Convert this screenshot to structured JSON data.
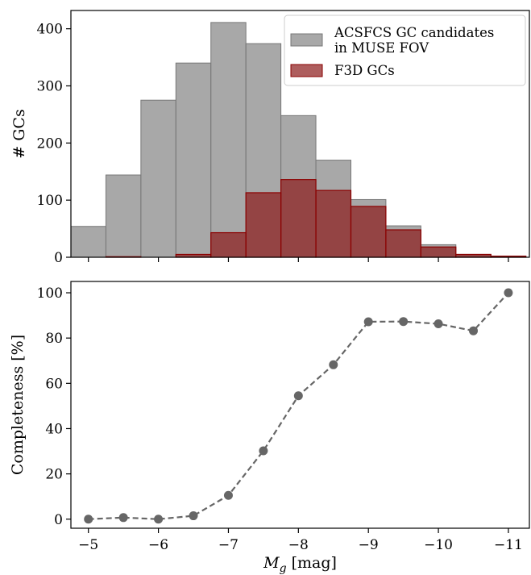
{
  "chart_data": [
    {
      "type": "bar",
      "panel": "top",
      "ylabel": "# GCs",
      "ylim": [
        0,
        432
      ],
      "xlim": [
        -4.75,
        -11.3
      ],
      "yticks": [
        0,
        100,
        200,
        300,
        400
      ],
      "bin_edges": [
        -4.75,
        -5.25,
        -5.75,
        -6.25,
        -6.75,
        -7.25,
        -7.75,
        -8.25,
        -8.75,
        -9.25,
        -9.75,
        -10.25,
        -10.75,
        -11.25
      ],
      "series": [
        {
          "name": "ACSFCS GC candidates in MUSE FOV",
          "name_lines": [
            "ACSFCS GC candidates",
            "in MUSE FOV"
          ],
          "color": "#999999",
          "values": [
            54,
            144,
            275,
            340,
            411,
            374,
            248,
            170,
            101,
            55,
            22,
            5,
            2
          ]
        },
        {
          "name": "F3D GCs",
          "color": "#8b1a1a",
          "values": [
            0,
            1,
            0,
            5,
            43,
            113,
            136,
            117,
            89,
            48,
            18,
            5,
            2
          ]
        }
      ],
      "legend": "top-right"
    },
    {
      "type": "line",
      "panel": "bottom",
      "xlabel": "M_g [mag]",
      "xlabel_main": "M",
      "xlabel_sub": "g",
      "xlabel_unit": " [mag]",
      "ylabel": "Completeness [%]",
      "ylim": [
        -4,
        105
      ],
      "xlim": [
        -4.75,
        -11.3
      ],
      "xticks": [
        -5,
        -6,
        -7,
        -8,
        -9,
        -10,
        -11
      ],
      "xtick_labels": [
        "−5",
        "−6",
        "−7",
        "−8",
        "−9",
        "−10",
        "−11"
      ],
      "yticks": [
        0,
        20,
        40,
        60,
        80,
        100
      ],
      "x": [
        -5.0,
        -5.5,
        -6.0,
        -6.5,
        -7.0,
        -7.5,
        -8.0,
        -8.5,
        -9.0,
        -9.5,
        -10.0,
        -10.5,
        -11.0
      ],
      "values": [
        0,
        0.7,
        0,
        1.5,
        10.5,
        30.2,
        54.5,
        68.2,
        87.2,
        87.3,
        86.3,
        83.2,
        100
      ],
      "color": "#666666",
      "linestyle": "dashed"
    }
  ]
}
